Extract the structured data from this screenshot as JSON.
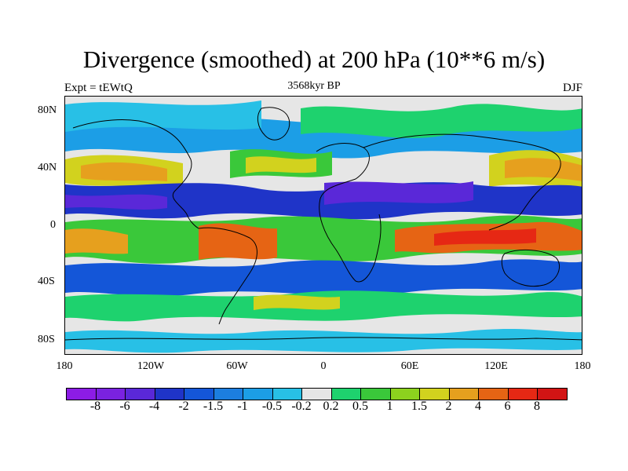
{
  "title": "Divergence (smoothed) at 200 hPa (10**6 m/s)",
  "subtitle_left": "Expt = tEWtQ",
  "subtitle_center": "3568kyr BP",
  "subtitle_right": "DJF",
  "map": {
    "projection": "cylindrical equidistant",
    "lon_range": [
      -180,
      180
    ],
    "lat_range": [
      -90,
      90
    ],
    "y_ticks": [
      "80N",
      "40N",
      "0",
      "40S",
      "80S"
    ],
    "x_ticks": [
      "180",
      "120W",
      "60W",
      "0",
      "60E",
      "120E",
      "180"
    ]
  },
  "colorbar": {
    "labels": [
      "-8",
      "-6",
      "-4",
      "-2",
      "-1.5",
      "-1",
      "-0.5",
      "-0.2",
      "0.2",
      "0.5",
      "1",
      "1.5",
      "2",
      "4",
      "6",
      "8"
    ],
    "colors": [
      "#8c1ce6",
      "#7a22e0",
      "#5a28d8",
      "#1f34c8",
      "#1456d8",
      "#1c7ee0",
      "#1c9ee6",
      "#28c0e6",
      "#e6e6e6",
      "#1ed26e",
      "#3ac83a",
      "#8cd21e",
      "#d2d21e",
      "#e6a01e",
      "#e66414",
      "#e62814",
      "#d21414"
    ]
  }
}
